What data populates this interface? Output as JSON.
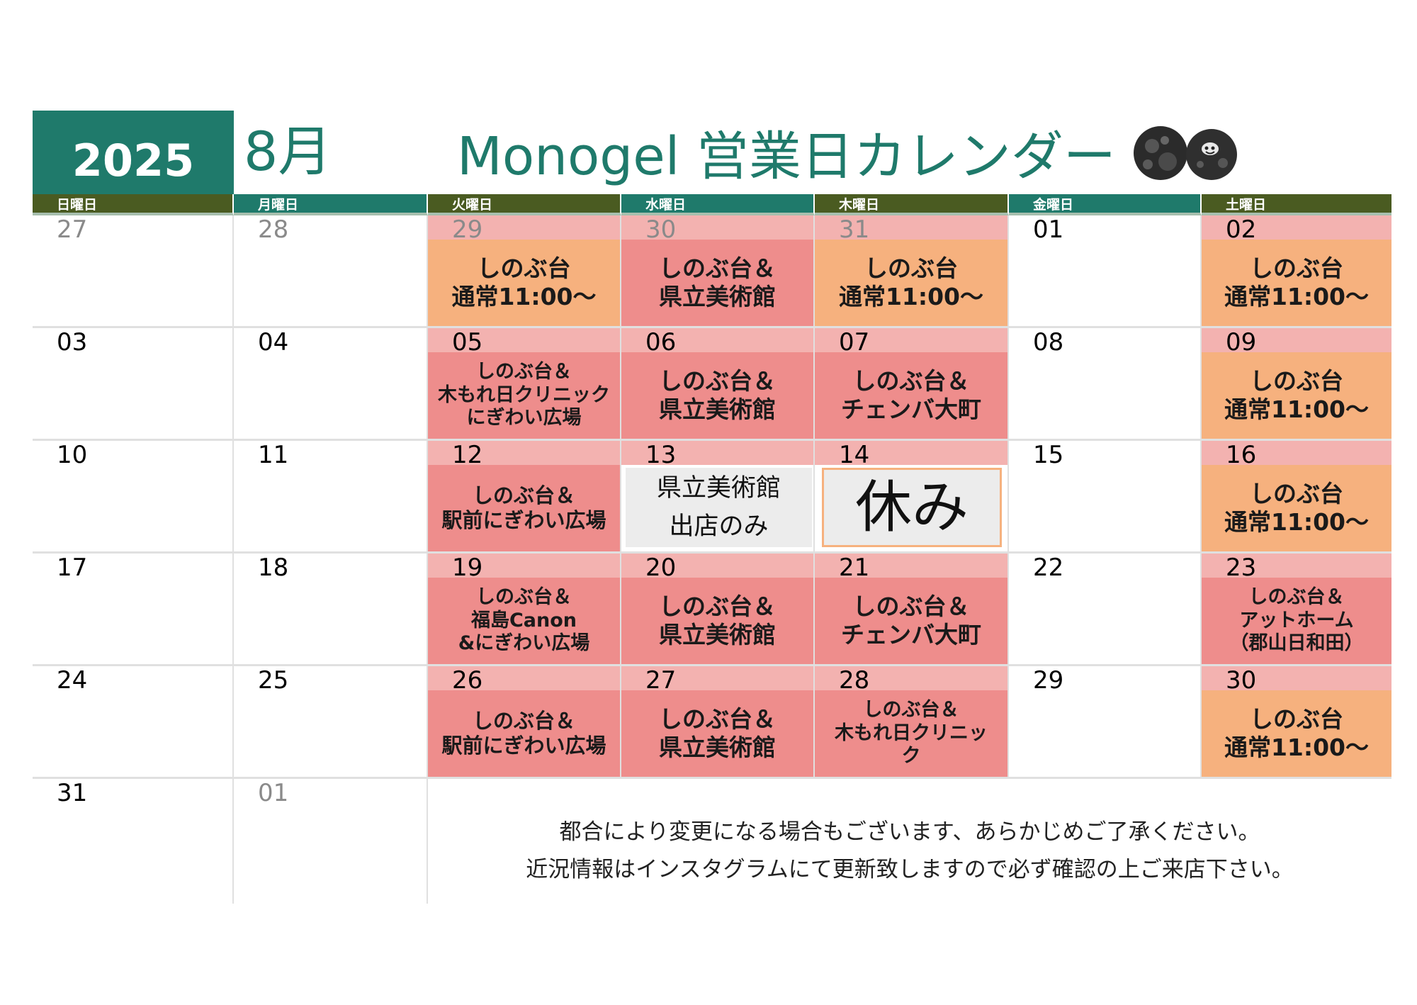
{
  "header": {
    "year": "2025",
    "month": "8月",
    "title": "Monogel 営業日カレンダー"
  },
  "weekdays": [
    "日曜日",
    "月曜日",
    "火曜日",
    "水曜日",
    "木曜日",
    "金曜日",
    "土曜日"
  ],
  "colors": {
    "year_box": "#1f7a6b",
    "header_olive": "#4a5b21",
    "header_teal": "#1f7a6b",
    "date_band": "#f3b2b0",
    "event_orange": "#f6b17e",
    "event_red": "#ee8d8c",
    "neutral": "#ececec"
  },
  "calendar": {
    "weeks": [
      [
        {
          "day": "27",
          "outside": true
        },
        {
          "day": "28",
          "outside": true
        },
        {
          "day": "29",
          "outside": true,
          "type": "orange",
          "lines": [
            "しのぶ台",
            "通常11:00～"
          ]
        },
        {
          "day": "30",
          "outside": true,
          "type": "red",
          "lines": [
            "しのぶ台＆",
            "県立美術館"
          ]
        },
        {
          "day": "31",
          "outside": true,
          "type": "orange",
          "lines": [
            "しのぶ台",
            "通常11:00～"
          ]
        },
        {
          "day": "01"
        },
        {
          "day": "02",
          "type": "orange",
          "lines": [
            "しのぶ台",
            "通常11:00～"
          ]
        }
      ],
      [
        {
          "day": "03"
        },
        {
          "day": "04"
        },
        {
          "day": "05",
          "type": "red",
          "size": "small",
          "lines": [
            "しのぶ台＆",
            "木もれ日クリニック",
            "にぎわい広場"
          ]
        },
        {
          "day": "06",
          "type": "red",
          "lines": [
            "しのぶ台＆",
            "県立美術館"
          ]
        },
        {
          "day": "07",
          "type": "red",
          "lines": [
            "しのぶ台＆",
            "チェンバ大町"
          ]
        },
        {
          "day": "08"
        },
        {
          "day": "09",
          "type": "orange",
          "lines": [
            "しのぶ台",
            "通常11:00～"
          ]
        }
      ],
      [
        {
          "day": "10"
        },
        {
          "day": "11"
        },
        {
          "day": "12",
          "type": "red",
          "size": "medium",
          "lines": [
            "しのぶ台＆",
            "駅前にぎわい広場"
          ]
        },
        {
          "day": "13",
          "type": "plain",
          "lines": [
            "県立美術館",
            "出店のみ"
          ]
        },
        {
          "day": "14",
          "type": "holiday",
          "lines": [
            "休み"
          ]
        },
        {
          "day": "15"
        },
        {
          "day": "16",
          "type": "orange",
          "lines": [
            "しのぶ台",
            "通常11:00～"
          ]
        }
      ],
      [
        {
          "day": "17"
        },
        {
          "day": "18"
        },
        {
          "day": "19",
          "type": "red",
          "size": "small",
          "lines": [
            "しのぶ台＆",
            "福島Canon",
            "&にぎわい広場"
          ]
        },
        {
          "day": "20",
          "type": "red",
          "lines": [
            "しのぶ台＆",
            "県立美術館"
          ]
        },
        {
          "day": "21",
          "type": "red",
          "lines": [
            "しのぶ台＆",
            "チェンバ大町"
          ]
        },
        {
          "day": "22"
        },
        {
          "day": "23",
          "type": "red",
          "size": "small",
          "lines": [
            "しのぶ台＆",
            "アットホーム",
            "（郡山日和田）"
          ]
        }
      ],
      [
        {
          "day": "24"
        },
        {
          "day": "25"
        },
        {
          "day": "26",
          "type": "red",
          "size": "medium",
          "lines": [
            "しのぶ台＆",
            "駅前にぎわい広場"
          ]
        },
        {
          "day": "27",
          "type": "red",
          "lines": [
            "しのぶ台＆",
            "県立美術館"
          ]
        },
        {
          "day": "28",
          "type": "red",
          "size": "small",
          "lines": [
            "しのぶ台＆",
            "木もれ日クリニッ",
            "ク"
          ]
        },
        {
          "day": "29"
        },
        {
          "day": "30",
          "type": "orange",
          "lines": [
            "しのぶ台",
            "通常11:00～"
          ]
        }
      ],
      [
        {
          "day": "31"
        },
        {
          "day": "01",
          "outside": true
        }
      ]
    ]
  },
  "notice": [
    "都合により変更になる場合もございます、あらかじめご了承ください。",
    "近況情報はインスタグラムにて更新致しますので必ず確認の上ご来店下さい。"
  ]
}
